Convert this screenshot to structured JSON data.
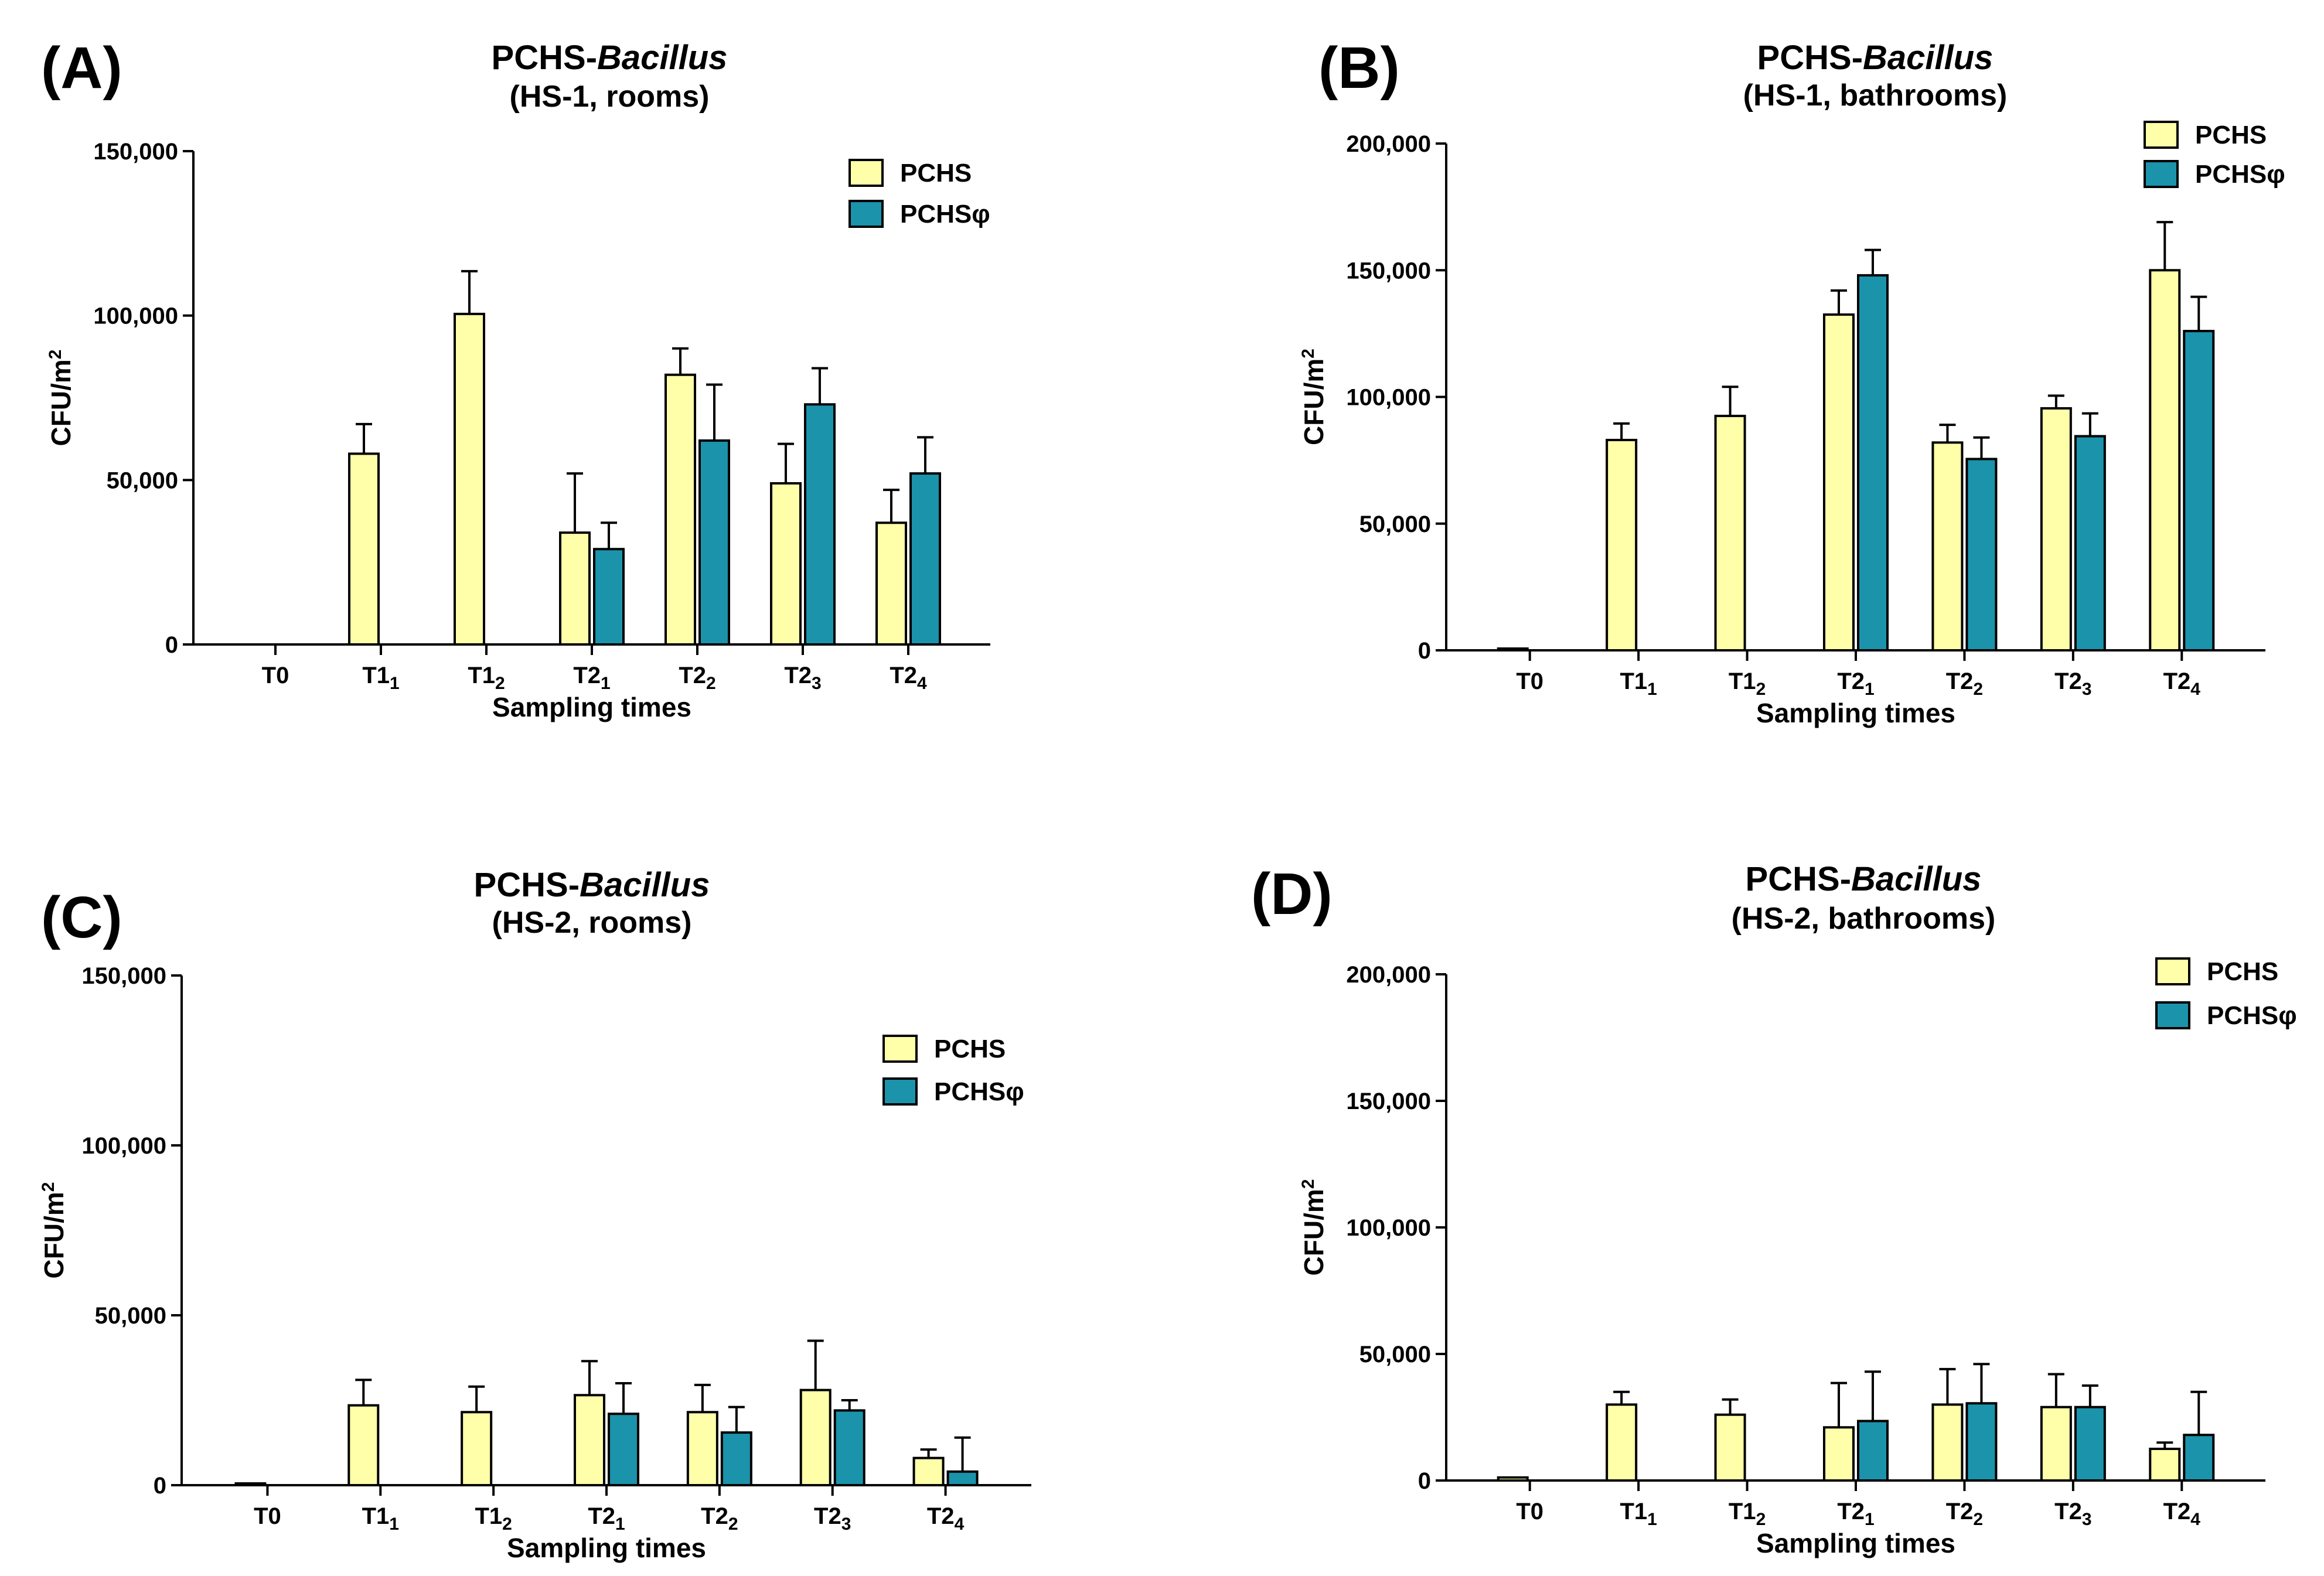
{
  "colors": {
    "pchs": "#FFFFAA",
    "pchs_phi": "#1A93AB",
    "stroke": "#000000"
  },
  "chart_data": [
    {
      "type": "bar",
      "panel": "(A)",
      "title_main": "PCHS-",
      "title_italic": "Bacillus",
      "subtitle": "(HS-1, rooms)",
      "xlabel": "Sampling times",
      "ylabel": "CFU/m",
      "ylabel_sup": "2",
      "ylim": [
        0,
        150000
      ],
      "yticks": [
        0,
        50000,
        100000,
        150000
      ],
      "ytick_labels": [
        "0",
        "50,000",
        "100,000",
        "150,000"
      ],
      "categories": [
        {
          "base": "T0",
          "sub": ""
        },
        {
          "base": "T1",
          "sub": "1"
        },
        {
          "base": "T1",
          "sub": "2"
        },
        {
          "base": "T2",
          "sub": "1"
        },
        {
          "base": "T2",
          "sub": "2"
        },
        {
          "base": "T2",
          "sub": "3"
        },
        {
          "base": "T2",
          "sub": "4"
        }
      ],
      "legend": [
        "PCHS",
        "PCHSφ"
      ],
      "legend_position": "top-right",
      "series": [
        {
          "name": "PCHS",
          "values": [
            0,
            58000,
            100500,
            34000,
            82000,
            49000,
            37000
          ],
          "errors": [
            0,
            9000,
            13000,
            18000,
            8000,
            12000,
            10000
          ]
        },
        {
          "name": "PCHSφ",
          "values": [
            0,
            0,
            0,
            29000,
            62000,
            73000,
            52000
          ],
          "errors": [
            0,
            0,
            0,
            8000,
            17000,
            11000,
            11000
          ]
        }
      ]
    },
    {
      "type": "bar",
      "panel": "(B)",
      "title_main": "PCHS-",
      "title_italic": "Bacillus",
      "subtitle": "(HS-1, bathrooms)",
      "xlabel": "Sampling times",
      "ylabel": "CFU/m",
      "ylabel_sup": "2",
      "ylim": [
        0,
        200000
      ],
      "yticks": [
        0,
        50000,
        100000,
        150000,
        200000
      ],
      "ytick_labels": [
        "0",
        "50,000",
        "100,000",
        "150,000",
        "200,000"
      ],
      "categories": [
        {
          "base": "T0",
          "sub": ""
        },
        {
          "base": "T1",
          "sub": "1"
        },
        {
          "base": "T1",
          "sub": "2"
        },
        {
          "base": "T2",
          "sub": "1"
        },
        {
          "base": "T2",
          "sub": "2"
        },
        {
          "base": "T2",
          "sub": "3"
        },
        {
          "base": "T2",
          "sub": "4"
        }
      ],
      "legend": [
        "PCHS",
        "PCHSφ"
      ],
      "legend_position": "top-right",
      "series": [
        {
          "name": "PCHS",
          "values": [
            600,
            83000,
            92500,
            132500,
            82000,
            95500,
            150000
          ],
          "errors": [
            0,
            6500,
            11500,
            9500,
            7000,
            5000,
            19000
          ]
        },
        {
          "name": "PCHSφ",
          "values": [
            0,
            0,
            0,
            148000,
            75500,
            84500,
            126000
          ],
          "errors": [
            0,
            0,
            0,
            10000,
            8500,
            9000,
            13500
          ]
        }
      ]
    },
    {
      "type": "bar",
      "panel": "(C)",
      "title_main": "PCHS-",
      "title_italic": "Bacillus",
      "subtitle": "(HS-2, rooms)",
      "xlabel": "Sampling times",
      "ylabel": "CFU/m",
      "ylabel_sup": "2",
      "ylim": [
        0,
        150000
      ],
      "yticks": [
        0,
        50000,
        100000,
        150000
      ],
      "ytick_labels": [
        "0",
        "50,000",
        "100,000",
        "150,000"
      ],
      "categories": [
        {
          "base": "T0",
          "sub": ""
        },
        {
          "base": "T1",
          "sub": "1"
        },
        {
          "base": "T1",
          "sub": "2"
        },
        {
          "base": "T2",
          "sub": "1"
        },
        {
          "base": "T2",
          "sub": "2"
        },
        {
          "base": "T2",
          "sub": "3"
        },
        {
          "base": "T2",
          "sub": "4"
        }
      ],
      "legend": [
        "PCHS",
        "PCHSφ"
      ],
      "legend_position": "top-right",
      "series": [
        {
          "name": "PCHS",
          "values": [
            300,
            23500,
            21500,
            26500,
            21500,
            28000,
            8000
          ],
          "errors": [
            0,
            7500,
            7500,
            10000,
            8000,
            14500,
            2500
          ]
        },
        {
          "name": "PCHSφ",
          "values": [
            0,
            0,
            0,
            21000,
            15500,
            22000,
            4000
          ],
          "errors": [
            0,
            0,
            0,
            9000,
            7500,
            3000,
            10000
          ]
        }
      ]
    },
    {
      "type": "bar",
      "panel": "(D)",
      "title_main": "PCHS-",
      "title_italic": "Bacillus",
      "subtitle": "(HS-2, bathrooms)",
      "xlabel": "Sampling times",
      "ylabel": "CFU/m",
      "ylabel_sup": "2",
      "ylim": [
        0,
        200000
      ],
      "yticks": [
        0,
        50000,
        100000,
        150000,
        200000
      ],
      "ytick_labels": [
        "0",
        "50,000",
        "100,000",
        "150,000",
        "200,000"
      ],
      "categories": [
        {
          "base": "T0",
          "sub": ""
        },
        {
          "base": "T1",
          "sub": "1"
        },
        {
          "base": "T1",
          "sub": "2"
        },
        {
          "base": "T2",
          "sub": "1"
        },
        {
          "base": "T2",
          "sub": "2"
        },
        {
          "base": "T2",
          "sub": "3"
        },
        {
          "base": "T2",
          "sub": "4"
        }
      ],
      "legend": [
        "PCHS",
        "PCHSφ"
      ],
      "legend_position": "top-right",
      "series": [
        {
          "name": "PCHS",
          "values": [
            1200,
            30000,
            26000,
            21000,
            30000,
            29000,
            12500
          ],
          "errors": [
            0,
            5000,
            6000,
            17500,
            14000,
            13000,
            2500
          ]
        },
        {
          "name": "PCHSφ",
          "values": [
            0,
            0,
            0,
            23500,
            30500,
            29000,
            18000
          ],
          "errors": [
            0,
            0,
            0,
            19500,
            15500,
            8500,
            17000
          ]
        }
      ]
    }
  ]
}
